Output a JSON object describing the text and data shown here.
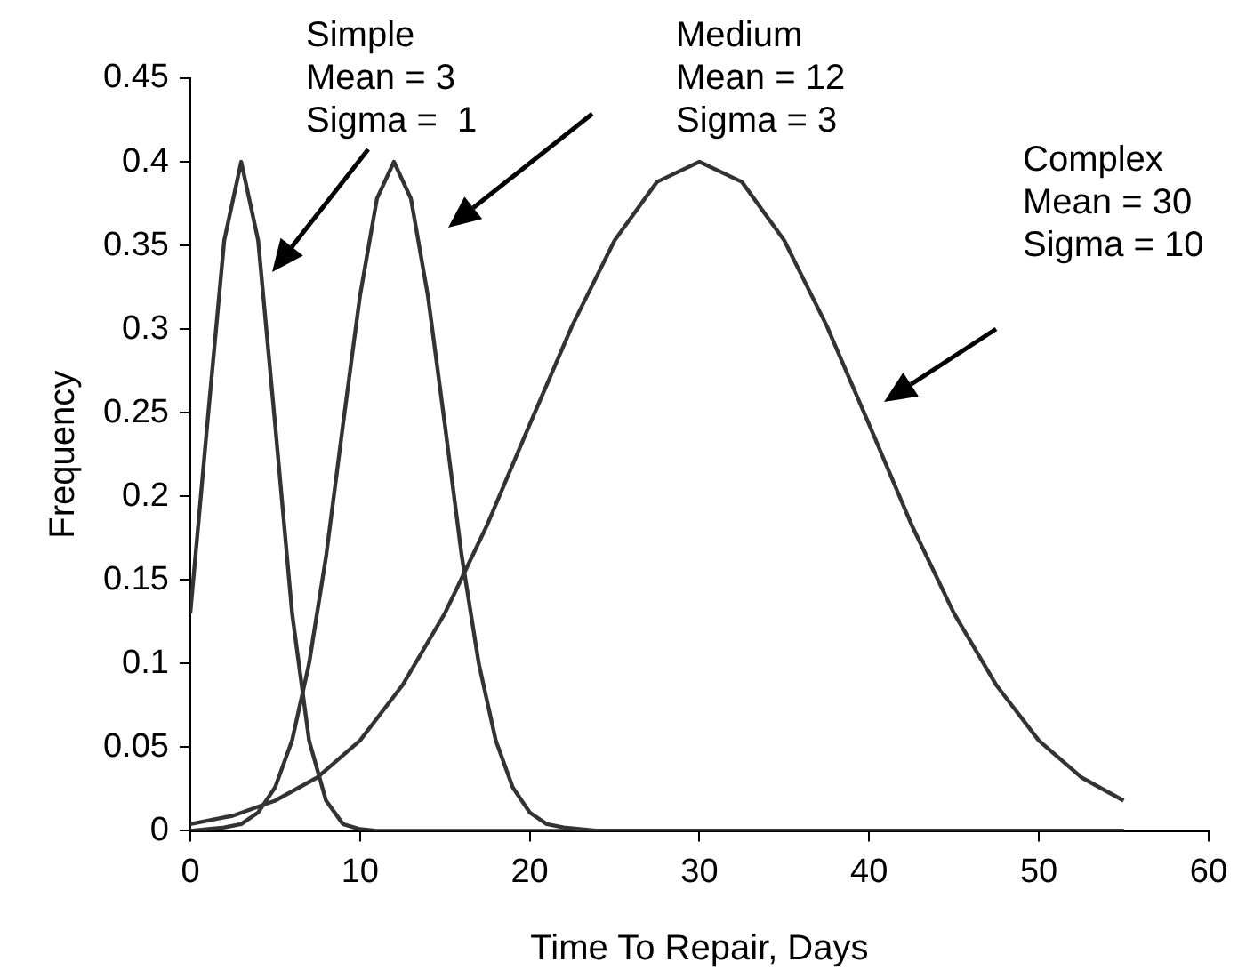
{
  "chart_data": {
    "type": "line",
    "xlabel": "Time To Repair, Days",
    "ylabel": "Frequency",
    "xlim": [
      0,
      60
    ],
    "xticks": [
      0,
      10,
      20,
      30,
      40,
      50,
      60
    ],
    "ylim": [
      0,
      0.45
    ],
    "yticks": [
      0,
      0.05,
      0.1,
      0.15,
      0.2,
      0.25,
      0.3,
      0.35,
      0.4,
      0.45
    ],
    "grid": false,
    "legend": false,
    "marker": "none",
    "line_style": "solid",
    "series": [
      {
        "color": "#333333",
        "x": [
          0,
          1,
          2,
          3,
          4,
          5,
          6,
          7,
          8,
          9,
          10,
          11,
          15,
          20,
          25,
          30,
          35,
          40,
          45,
          50,
          55
        ],
        "values": [
          0.13,
          0.243,
          0.353,
          0.4,
          0.353,
          0.243,
          0.13,
          0.054,
          0.018,
          0.004,
          0.001,
          0,
          0,
          0,
          0,
          0,
          0,
          0,
          0,
          0,
          0
        ]
      },
      {
        "color": "#333333",
        "x": [
          0,
          2,
          3,
          4,
          5,
          6,
          7,
          8,
          9,
          10,
          11,
          12,
          13,
          14,
          15,
          16,
          17,
          18,
          19,
          20,
          21,
          22,
          24,
          30,
          40,
          55
        ],
        "values": [
          0,
          0.002,
          0.004,
          0.011,
          0.026,
          0.054,
          0.1,
          0.164,
          0.243,
          0.32,
          0.378,
          0.4,
          0.378,
          0.32,
          0.243,
          0.164,
          0.1,
          0.054,
          0.026,
          0.011,
          0.004,
          0.002,
          0,
          0,
          0,
          0
        ]
      },
      {
        "color": "#333333",
        "x": [
          0,
          2.5,
          5,
          7.5,
          10,
          12.5,
          15,
          17.5,
          20,
          22.5,
          25,
          27.5,
          30,
          32.5,
          35,
          37.5,
          40,
          42.5,
          45,
          47.5,
          50,
          52.5,
          55
        ],
        "values": [
          0.004,
          0.009,
          0.018,
          0.032,
          0.054,
          0.087,
          0.13,
          0.183,
          0.243,
          0.302,
          0.353,
          0.388,
          0.4,
          0.388,
          0.353,
          0.302,
          0.243,
          0.183,
          0.13,
          0.087,
          0.054,
          0.032,
          0.018
        ]
      }
    ],
    "annotations": [
      "Simple\nMean = 3\nSigma =  1",
      "Medium\nMean = 12\nSigma = 3",
      "Complex\nMean = 30\nSigma = 10"
    ]
  }
}
